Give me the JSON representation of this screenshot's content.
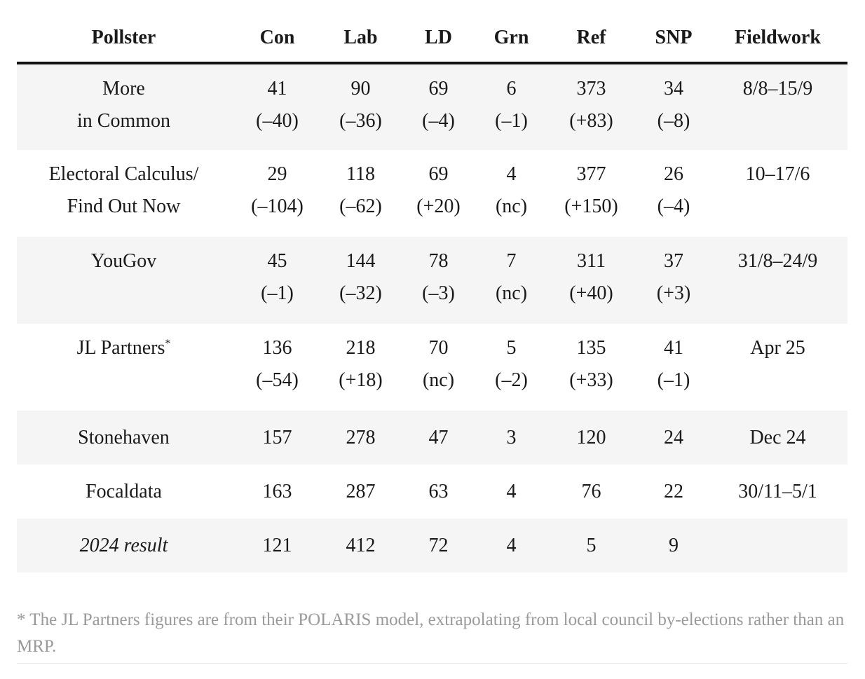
{
  "table": {
    "headers": [
      "Pollster",
      "Con",
      "Lab",
      "LD",
      "Grn",
      "Ref",
      "SNP",
      "Fieldwork"
    ],
    "rows": [
      {
        "pollster_line1": "More",
        "pollster_line2": "in Common",
        "con": "41",
        "con_change": "(–40)",
        "lab": "90",
        "lab_change": "(–36)",
        "ld": "69",
        "ld_change": "(–4)",
        "grn": "6",
        "grn_change": "(–1)",
        "ref": "373",
        "ref_change": "(+83)",
        "snp": "34",
        "snp_change": "(–8)",
        "fieldwork": "8/8–15/9"
      },
      {
        "pollster_line1": "Electoral Calculus/",
        "pollster_line2": "Find Out Now",
        "con": "29",
        "con_change": "(–104)",
        "lab": "118",
        "lab_change": "(–62)",
        "ld": "69",
        "ld_change": "(+20)",
        "grn": "4",
        "grn_change": "(nc)",
        "ref": "377",
        "ref_change": "(+150)",
        "snp": "26",
        "snp_change": "(–4)",
        "fieldwork": "10–17/6"
      },
      {
        "pollster_line1": "YouGov",
        "con": "45",
        "con_change": "(–1)",
        "lab": "144",
        "lab_change": "(–32)",
        "ld": "78",
        "ld_change": "(–3)",
        "grn": "7",
        "grn_change": "(nc)",
        "ref": "311",
        "ref_change": "(+40)",
        "snp": "37",
        "snp_change": "(+3)",
        "fieldwork": "31/8–24/9"
      },
      {
        "pollster_line1": "JL Partners",
        "pollster_mark": "*",
        "con": "136",
        "con_change": "(–54)",
        "lab": "218",
        "lab_change": "(+18)",
        "ld": "70",
        "ld_change": "(nc)",
        "grn": "5",
        "grn_change": "(–2)",
        "ref": "135",
        "ref_change": "(+33)",
        "snp": "41",
        "snp_change": "(–1)",
        "fieldwork": "Apr 25"
      },
      {
        "pollster_line1": "Stonehaven",
        "con": "157",
        "lab": "278",
        "ld": "47",
        "grn": "3",
        "ref": "120",
        "snp": "24",
        "fieldwork": "Dec 24"
      },
      {
        "pollster_line1": "Focaldata",
        "con": "163",
        "lab": "287",
        "ld": "63",
        "grn": "4",
        "ref": "76",
        "snp": "22",
        "fieldwork": "30/11–5/1"
      },
      {
        "pollster_line1": "2024 result",
        "con": "121",
        "lab": "412",
        "ld": "72",
        "grn": "4",
        "ref": "5",
        "snp": "9",
        "fieldwork": ""
      }
    ]
  },
  "footnote": "* The JL Partners figures are from their POLARIS model, extrapolating from local council by-elections rather than an MRP."
}
